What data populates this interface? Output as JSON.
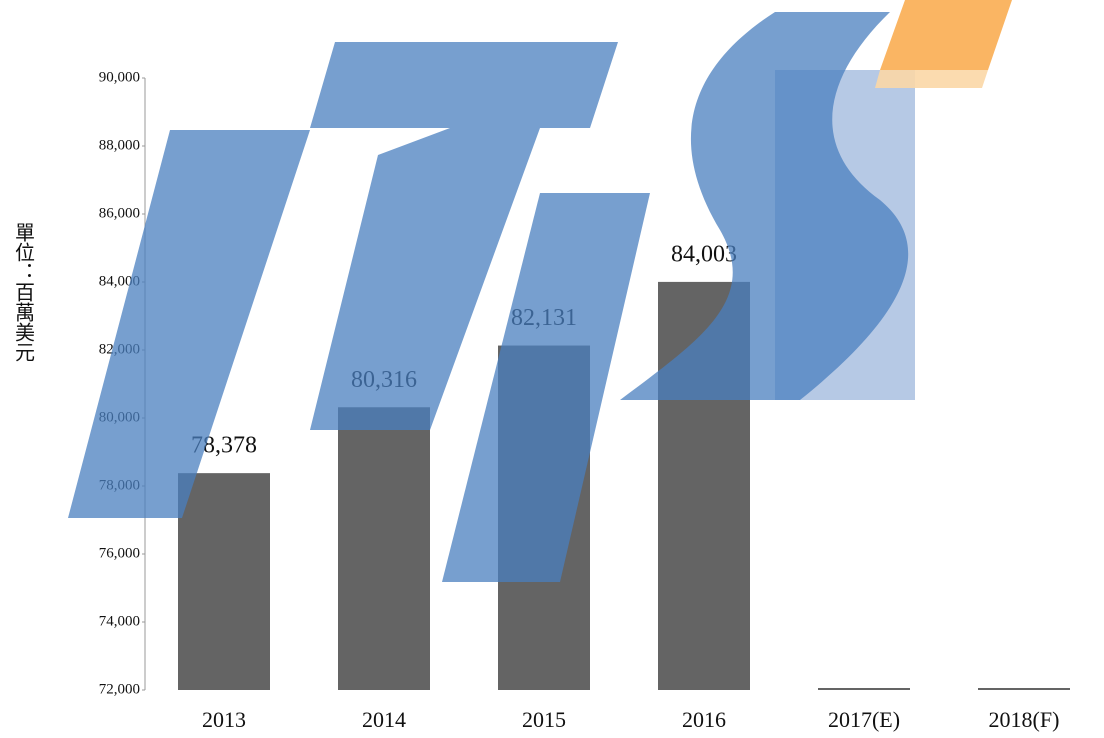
{
  "chart_data": {
    "type": "bar",
    "y_label": "單位：百萬美元",
    "categories": [
      "2013",
      "2014",
      "2015",
      "2016",
      "2017(E)",
      "2018(F)"
    ],
    "values": [
      78378,
      80316,
      82131,
      84003,
      null,
      null
    ],
    "value_labels": [
      "78,378",
      "80,316",
      "82,131",
      "84,003",
      null,
      null
    ],
    "color": "#646464",
    "ylim": [
      72000,
      90000
    ],
    "yticks": [
      {
        "value": 72000,
        "label": "72,000"
      },
      {
        "value": 74000,
        "label": "74,000"
      },
      {
        "value": 76000,
        "label": "76,000"
      },
      {
        "value": 78000,
        "label": "78,000"
      },
      {
        "value": 80000,
        "label": "80,000"
      },
      {
        "value": 82000,
        "label": "82,000"
      },
      {
        "value": 84000,
        "label": "84,000"
      },
      {
        "value": 86000,
        "label": "86,000"
      },
      {
        "value": 88000,
        "label": "88,000"
      },
      {
        "value": 90000,
        "label": "90,000"
      }
    ],
    "grid": false
  }
}
